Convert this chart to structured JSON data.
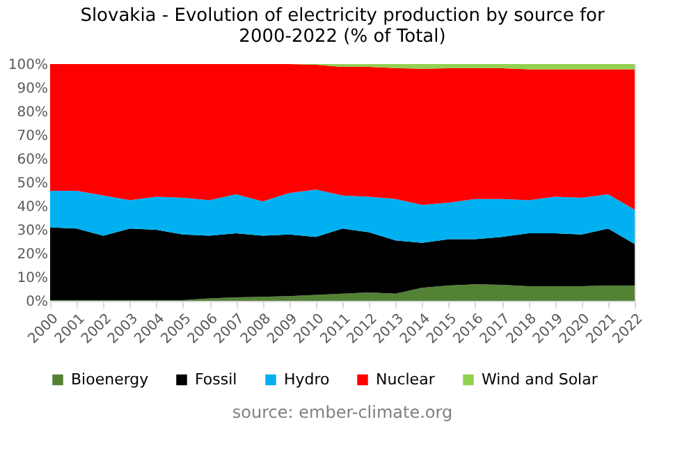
{
  "chart_data": {
    "type": "area",
    "stacked": true,
    "title": [
      "Slovakia - Evolution of electricity production  by source for",
      "2000-2022 (% of Total)"
    ],
    "categories": [
      "2000",
      "2001",
      "2002",
      "2003",
      "2004",
      "2005",
      "2006",
      "2007",
      "2008",
      "2009",
      "2010",
      "2011",
      "2012",
      "2013",
      "2014",
      "2015",
      "2016",
      "2017",
      "2018",
      "2019",
      "2020",
      "2021",
      "2022"
    ],
    "series": [
      {
        "name": "Bioenergy",
        "color": "#548235",
        "values": [
          0.3,
          0.3,
          0.3,
          0.3,
          0.3,
          0.3,
          1,
          1.5,
          1.7,
          2,
          2.5,
          3,
          3.5,
          3,
          5.5,
          6.5,
          7,
          6.8,
          6.2,
          6.2,
          6.2,
          6.5,
          6.5
        ]
      },
      {
        "name": "Fossil",
        "color": "#000000",
        "values": [
          30.7,
          30.2,
          27.2,
          30.2,
          29.7,
          27.7,
          26.5,
          27,
          25.8,
          26,
          24.5,
          27.5,
          25.5,
          22.5,
          19,
          19.5,
          19,
          20.2,
          22.3,
          22.3,
          21.8,
          24,
          17.5
        ]
      },
      {
        "name": "Hydro",
        "color": "#00b0f0",
        "values": [
          15.5,
          16,
          17,
          12,
          14,
          15.5,
          15,
          16.5,
          14.5,
          17.5,
          20,
          14,
          15,
          17.5,
          16,
          15.5,
          17,
          16,
          14,
          15.5,
          15.5,
          14.5,
          14.5
        ]
      },
      {
        "name": "Nuclear",
        "color": "#ff0000",
        "values": [
          53.5,
          53.5,
          55.5,
          57.5,
          56,
          56.5,
          57.5,
          55,
          58,
          54.5,
          52.7,
          54.3,
          54.8,
          55.3,
          57.5,
          56.7,
          55.2,
          55.2,
          55.3,
          53.8,
          54.3,
          52.8,
          59.3
        ]
      },
      {
        "name": "Wind and Solar",
        "color": "#92d050",
        "values": [
          0,
          0,
          0,
          0,
          0,
          0,
          0,
          0,
          0,
          0,
          0.3,
          1.2,
          1.2,
          1.7,
          2,
          1.8,
          1.8,
          1.8,
          2.2,
          2.2,
          2.2,
          2.2,
          2.2
        ]
      }
    ],
    "ylim": [
      0,
      100
    ],
    "yticks": [
      {
        "value": 0,
        "label": "0%"
      },
      {
        "value": 10,
        "label": "10%"
      },
      {
        "value": 20,
        "label": "20%"
      },
      {
        "value": 30,
        "label": "30%"
      },
      {
        "value": 40,
        "label": "40%"
      },
      {
        "value": 50,
        "label": "50%"
      },
      {
        "value": 60,
        "label": "60%"
      },
      {
        "value": 70,
        "label": "70%"
      },
      {
        "value": 80,
        "label": "80%"
      },
      {
        "value": 90,
        "label": "90%"
      },
      {
        "value": 100,
        "label": "100%"
      }
    ],
    "grid": false,
    "legend": "bottom",
    "annotations": [
      "source: ember-climate.org"
    ]
  }
}
